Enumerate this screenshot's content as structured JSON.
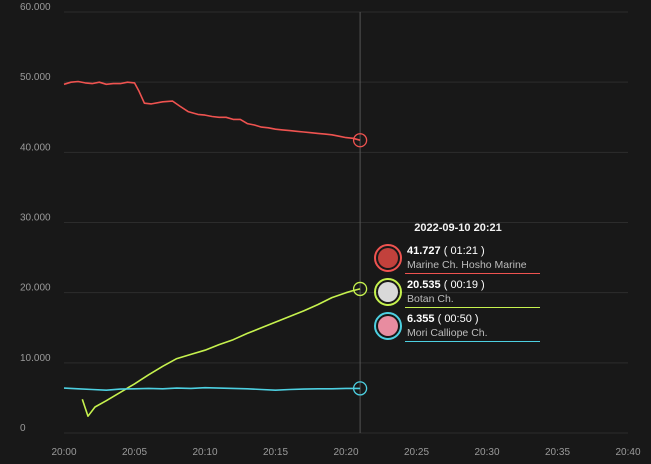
{
  "chart_data": {
    "type": "line",
    "x_axis": {
      "ticks": [
        "20:00",
        "20:05",
        "20:10",
        "20:15",
        "20:20",
        "20:25",
        "20:30",
        "20:35",
        "20:40"
      ],
      "range_minutes": [
        0,
        40
      ]
    },
    "y_axis": {
      "ticks": [
        "0",
        "10.000",
        "20.000",
        "30.000",
        "40.000",
        "50.000",
        "60.000"
      ],
      "range": [
        0,
        60000
      ]
    },
    "grid": "horizontal",
    "crosshair_x": 21,
    "series": [
      {
        "color": "#ef5350",
        "points": [
          [
            0,
            49700
          ],
          [
            0.5,
            50000
          ],
          [
            1,
            50100
          ],
          [
            1.5,
            49900
          ],
          [
            2,
            49800
          ],
          [
            2.5,
            50000
          ],
          [
            3,
            49700
          ],
          [
            3.5,
            49800
          ],
          [
            4,
            49800
          ],
          [
            4.5,
            50000
          ],
          [
            5,
            49900
          ],
          [
            5.3,
            48800
          ],
          [
            5.7,
            47000
          ],
          [
            6.2,
            46900
          ],
          [
            7,
            47200
          ],
          [
            7.7,
            47300
          ],
          [
            8.2,
            46600
          ],
          [
            8.8,
            45800
          ],
          [
            9.5,
            45400
          ],
          [
            10,
            45300
          ],
          [
            10.5,
            45100
          ],
          [
            11,
            45000
          ],
          [
            11.5,
            45000
          ],
          [
            12,
            44700
          ],
          [
            12.5,
            44700
          ],
          [
            13,
            44100
          ],
          [
            13.5,
            43900
          ],
          [
            14,
            43600
          ],
          [
            14.5,
            43500
          ],
          [
            15,
            43300
          ],
          [
            15.5,
            43200
          ],
          [
            16,
            43100
          ],
          [
            16.5,
            43000
          ],
          [
            17,
            42900
          ],
          [
            17.5,
            42800
          ],
          [
            18,
            42700
          ],
          [
            18.5,
            42600
          ],
          [
            19,
            42500
          ],
          [
            19.5,
            42300
          ],
          [
            20,
            42100
          ],
          [
            20.5,
            42000
          ],
          [
            21,
            41727
          ]
        ]
      },
      {
        "color": "#c6f24e",
        "points": [
          [
            1.3,
            4800
          ],
          [
            1.7,
            2400
          ],
          [
            2.2,
            3700
          ],
          [
            3,
            4600
          ],
          [
            4,
            5800
          ],
          [
            5,
            7000
          ],
          [
            6,
            8300
          ],
          [
            7,
            9500
          ],
          [
            8,
            10600
          ],
          [
            9,
            11200
          ],
          [
            10,
            11800
          ],
          [
            11,
            12600
          ],
          [
            12,
            13300
          ],
          [
            13,
            14200
          ],
          [
            14,
            15000
          ],
          [
            15,
            15800
          ],
          [
            16,
            16600
          ],
          [
            17,
            17400
          ],
          [
            18,
            18300
          ],
          [
            19,
            19300
          ],
          [
            20,
            20000
          ],
          [
            20.5,
            20300
          ],
          [
            21,
            20535
          ]
        ]
      },
      {
        "color": "#4dd0e1",
        "points": [
          [
            0,
            6400
          ],
          [
            1,
            6300
          ],
          [
            2,
            6200
          ],
          [
            3,
            6100
          ],
          [
            4,
            6250
          ],
          [
            5,
            6300
          ],
          [
            6,
            6350
          ],
          [
            7,
            6300
          ],
          [
            8,
            6400
          ],
          [
            9,
            6350
          ],
          [
            10,
            6450
          ],
          [
            11,
            6400
          ],
          [
            12,
            6350
          ],
          [
            13,
            6300
          ],
          [
            14,
            6200
          ],
          [
            15,
            6100
          ],
          [
            16,
            6200
          ],
          [
            17,
            6250
          ],
          [
            18,
            6300
          ],
          [
            19,
            6300
          ],
          [
            20,
            6350
          ],
          [
            21,
            6355
          ]
        ]
      }
    ]
  },
  "tooltip": {
    "date": "2022-09-10 20:21",
    "rows": [
      {
        "value": "41.727",
        "duration": "( 01:21 )",
        "name": "Marine Ch. Hosho Marine",
        "color": "#ef5350",
        "face_color": "#c2413c"
      },
      {
        "value": "20.535",
        "duration": "( 00:19 )",
        "name": "Botan Ch.",
        "color": "#c6f24e",
        "face_color": "#d9d9d9"
      },
      {
        "value": "6.355",
        "duration": "( 00:50 )",
        "name": "Mori Calliope Ch.",
        "color": "#4dd0e1",
        "face_color": "#e88ca0"
      }
    ]
  }
}
